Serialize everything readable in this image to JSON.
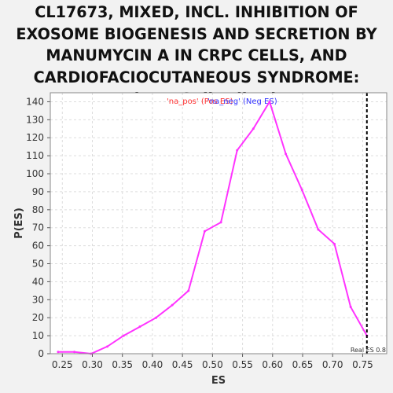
{
  "title": "CL17673, MIXED, INCL. INHIBITION OF EXOSOME BIOGENESIS AND SECRETION BY MANUMYCIN A IN CRPC CELLS, AND CARDIOFACIOCUTANEOUS SYNDROME: Random ES distribution",
  "colors": {
    "series_line": "#ff33ff",
    "legend_pos": "#ff3333",
    "legend_neg": "#3333ff",
    "real_es_line": "#000000",
    "plot_background": "#ffffff",
    "grid": "#dddddd"
  },
  "chart_data": {
    "type": "line",
    "title": "CL17673, MIXED, INCL. INHIBITION OF EXOSOME BIOGENESIS AND SECRETION BY MANUMYCIN A IN CRPC CELLS, AND CARDIOFACIOCUTANEOUS SYNDROME: Random ES distribution",
    "xlabel": "ES",
    "ylabel": "P(ES)",
    "xlim": [
      0.23,
      0.79
    ],
    "ylim": [
      0,
      145
    ],
    "x_ticks": [
      "0.25",
      "0.30",
      "0.35",
      "0.40",
      "0.45",
      "0.50",
      "0.55",
      "0.60",
      "0.65",
      "0.70",
      "0.75"
    ],
    "y_ticks": [
      "0",
      "10",
      "20",
      "30",
      "40",
      "50",
      "60",
      "70",
      "80",
      "90",
      "100",
      "110",
      "120",
      "130",
      "140"
    ],
    "grid": true,
    "legend": {
      "placement": "top-center",
      "entries": [
        "'na_pos' (Pos ES)",
        "'na_neg' (Neg ES)"
      ]
    },
    "series": [
      {
        "x": [
          0.243,
          0.27,
          0.298,
          0.325,
          0.352,
          0.379,
          0.406,
          0.433,
          0.46,
          0.487,
          0.514,
          0.541,
          0.568,
          0.595,
          0.622,
          0.649,
          0.676,
          0.703,
          0.73,
          0.757
        ],
        "y": [
          1,
          1,
          0,
          4,
          10,
          15,
          20,
          27,
          35,
          68,
          73,
          113,
          125,
          140,
          111,
          91,
          69,
          61,
          26,
          10
        ]
      }
    ],
    "real_es": {
      "x": 0.757,
      "label": "Real ES 0.8"
    }
  }
}
